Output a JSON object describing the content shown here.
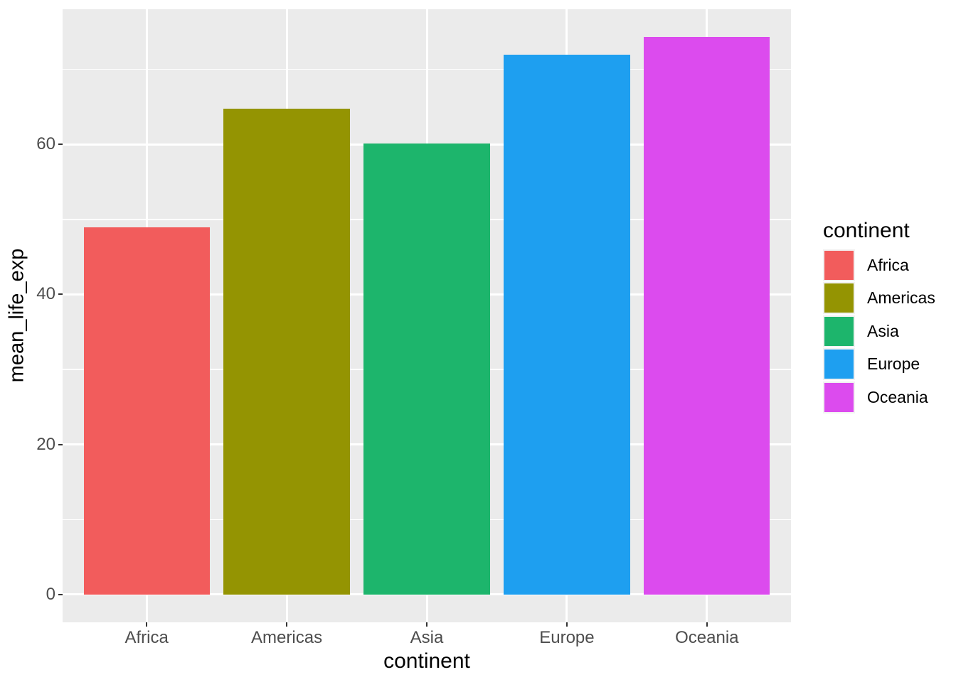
{
  "chart_data": {
    "type": "bar",
    "title": "",
    "xlabel": "continent",
    "ylabel": "mean_life_exp",
    "categories": [
      "Africa",
      "Americas",
      "Asia",
      "Europe",
      "Oceania"
    ],
    "values": [
      48.9,
      64.7,
      60.1,
      71.9,
      74.3
    ],
    "bar_colors": [
      "#F25C5C",
      "#949402",
      "#1DB56C",
      "#1E9FF0",
      "#DC4BEE"
    ],
    "bar_width_fraction": 0.9,
    "ylim": [
      -3.7,
      78.0
    ],
    "y_major_ticks": [
      0,
      20,
      40,
      60
    ],
    "y_minor_ticks": [
      10,
      30,
      50,
      70
    ],
    "y_tick_labels": [
      "0",
      "20",
      "40",
      "60"
    ],
    "grid": true,
    "panel_bg": "#EBEBEB",
    "grid_color": "#FFFFFF",
    "tick_mark_color": "#333333",
    "tick_label_color": "#4D4D4D",
    "legend": {
      "position": "right",
      "title": "continent",
      "entries": [
        {
          "label": "Africa",
          "color": "#F25C5C"
        },
        {
          "label": "Americas",
          "color": "#949402"
        },
        {
          "label": "Asia",
          "color": "#1DB56C"
        },
        {
          "label": "Europe",
          "color": "#1E9FF0"
        },
        {
          "label": "Oceania",
          "color": "#DC4BEE"
        }
      ]
    }
  }
}
